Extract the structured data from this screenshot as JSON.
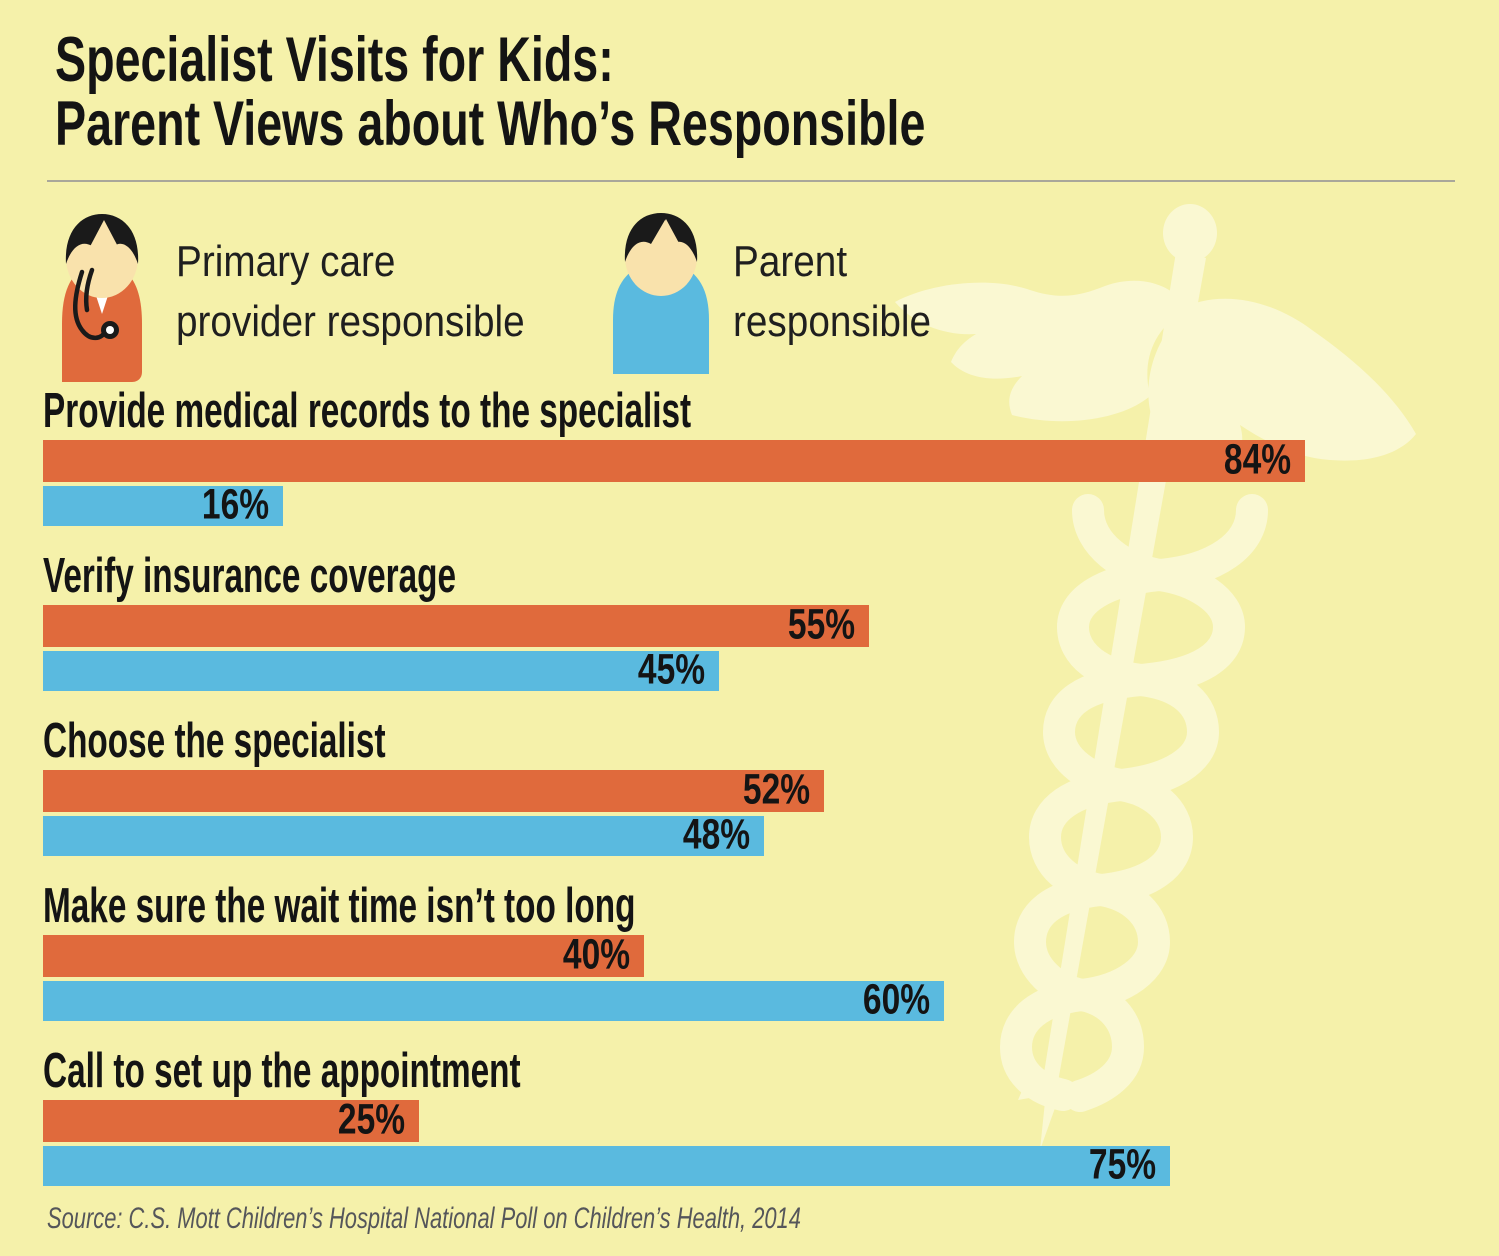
{
  "title": {
    "line1": "Specialist Visits for Kids:",
    "line2": "Parent Views about Who’s Responsible"
  },
  "legend": {
    "items": [
      {
        "icon": "doctor-icon",
        "line1": "Primary care",
        "line2": "provider responsible",
        "color": "#E06A3C"
      },
      {
        "icon": "parent-icon",
        "line1": "Parent",
        "line2": "responsible",
        "color": "#5ABADF"
      }
    ],
    "position": "top"
  },
  "chart_data": {
    "type": "bar",
    "orientation": "horizontal",
    "unit": "%",
    "xlim": [
      0,
      100
    ],
    "grid": false,
    "value_label_position": "inside-end",
    "categories": [
      "Provide medical records to the specialist",
      "Verify insurance coverage",
      "Choose the specialist",
      "Make sure the wait time isn’t too long",
      "Call to set up the appointment"
    ],
    "series": [
      {
        "name": "Primary care provider responsible",
        "color": "#E06A3C",
        "values": [
          84,
          55,
          52,
          40,
          25
        ]
      },
      {
        "name": "Parent responsible",
        "color": "#5ABADF",
        "values": [
          16,
          45,
          48,
          60,
          75
        ]
      }
    ]
  },
  "source": "Source: C.S. Mott Children’s Hospital National Poll on Children’s Health, 2014",
  "watermark": "caduceus-watermark",
  "colors": {
    "bg": "#F5F1AA",
    "watermark": "#FAF8D2",
    "orange": "#E06A3C",
    "blue": "#5ABADF",
    "ink": "#141414",
    "source": "#55565A",
    "divider": "#A9A79A",
    "skin": "#F9E2AC",
    "hair": "#1A1A1A"
  }
}
